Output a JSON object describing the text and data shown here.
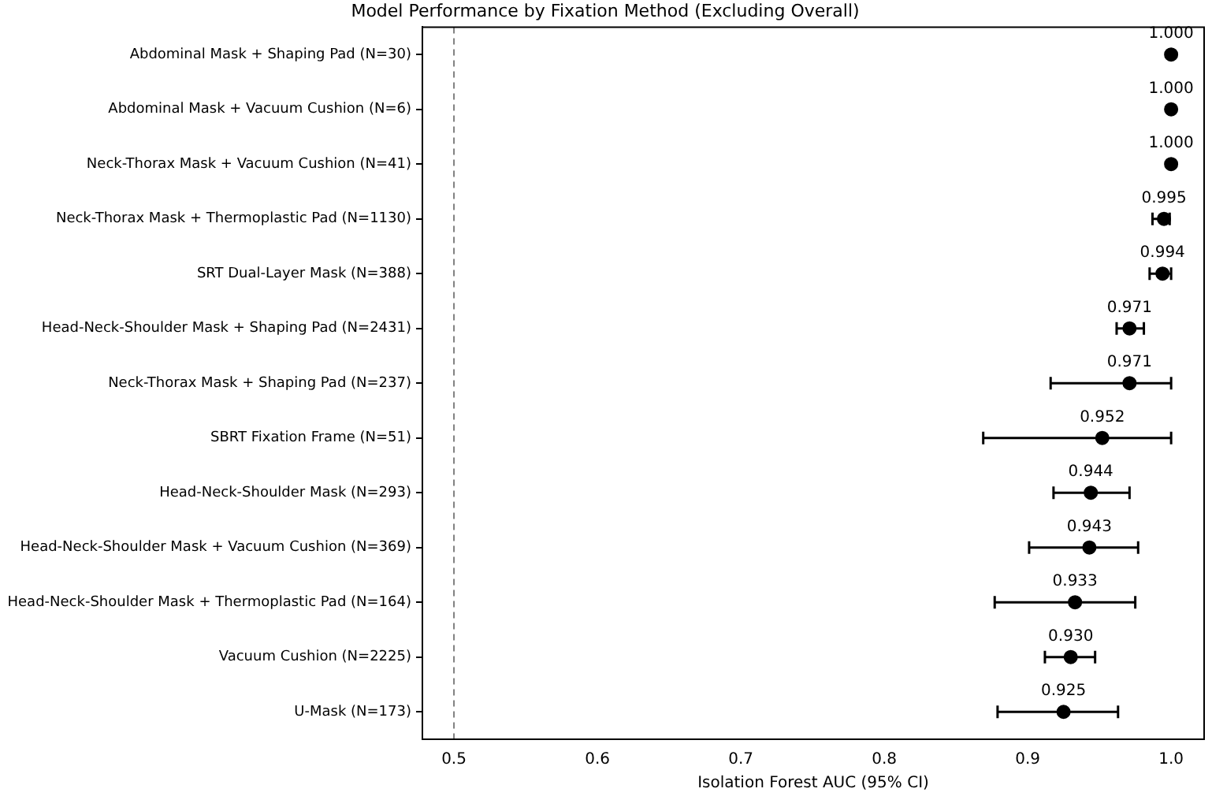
{
  "chart_data": {
    "type": "scatter",
    "orientation": "horizontal",
    "title": "Model Performance by Fixation Method (Excluding Overall)",
    "xlabel": "Isolation Forest AUC (95% CI)",
    "categories": [
      "Abdominal Mask + Shaping Pad (N=30)",
      "Abdominal Mask + Vacuum Cushion (N=6)",
      "Neck-Thorax Mask + Vacuum Cushion (N=41)",
      "Neck-Thorax Mask + Thermoplastic Pad (N=1130)",
      "SRT Dual-Layer Mask (N=388)",
      "Head-Neck-Shoulder Mask + Shaping Pad (N=2431)",
      "Neck-Thorax Mask + Shaping Pad (N=237)",
      "SBRT Fixation Frame (N=51)",
      "Head-Neck-Shoulder Mask (N=293)",
      "Head-Neck-Shoulder Mask + Vacuum Cushion (N=369)",
      "Head-Neck-Shoulder Mask + Thermoplastic Pad (N=164)",
      "Vacuum Cushion (N=2225)",
      "U-Mask (N=173)"
    ],
    "values": [
      1.0,
      1.0,
      1.0,
      0.995,
      0.994,
      0.971,
      0.971,
      0.952,
      0.944,
      0.943,
      0.933,
      0.93,
      0.925
    ],
    "value_labels": [
      "1.000",
      "1.000",
      "1.000",
      "0.995",
      "0.994",
      "0.971",
      "0.971",
      "0.952",
      "0.944",
      "0.943",
      "0.933",
      "0.930",
      "0.925"
    ],
    "errors": [
      null,
      null,
      null,
      [
        0.987,
        0.999
      ],
      [
        0.985,
        1.0
      ],
      [
        0.962,
        0.981
      ],
      [
        0.916,
        1.0
      ],
      [
        0.869,
        1.0
      ],
      [
        0.918,
        0.971
      ],
      [
        0.901,
        0.977
      ],
      [
        0.877,
        0.975
      ],
      [
        0.912,
        0.947
      ],
      [
        0.879,
        0.963
      ]
    ],
    "color": "#000000",
    "marker": "circle",
    "grid": false,
    "legend": false,
    "xlim": [
      0.478,
      1.023
    ],
    "xticks": [
      {
        "value": 0.5,
        "label": "0.5"
      },
      {
        "value": 0.6,
        "label": "0.6"
      },
      {
        "value": 0.7,
        "label": "0.7"
      },
      {
        "value": 0.8,
        "label": "0.8"
      },
      {
        "value": 0.9,
        "label": "0.9"
      },
      {
        "value": 1.0,
        "label": "1.0"
      }
    ],
    "ref_lines": [
      {
        "axis": "x",
        "value": 0.5,
        "label": null,
        "color": "#808080",
        "line_style": "dashed"
      }
    ]
  }
}
